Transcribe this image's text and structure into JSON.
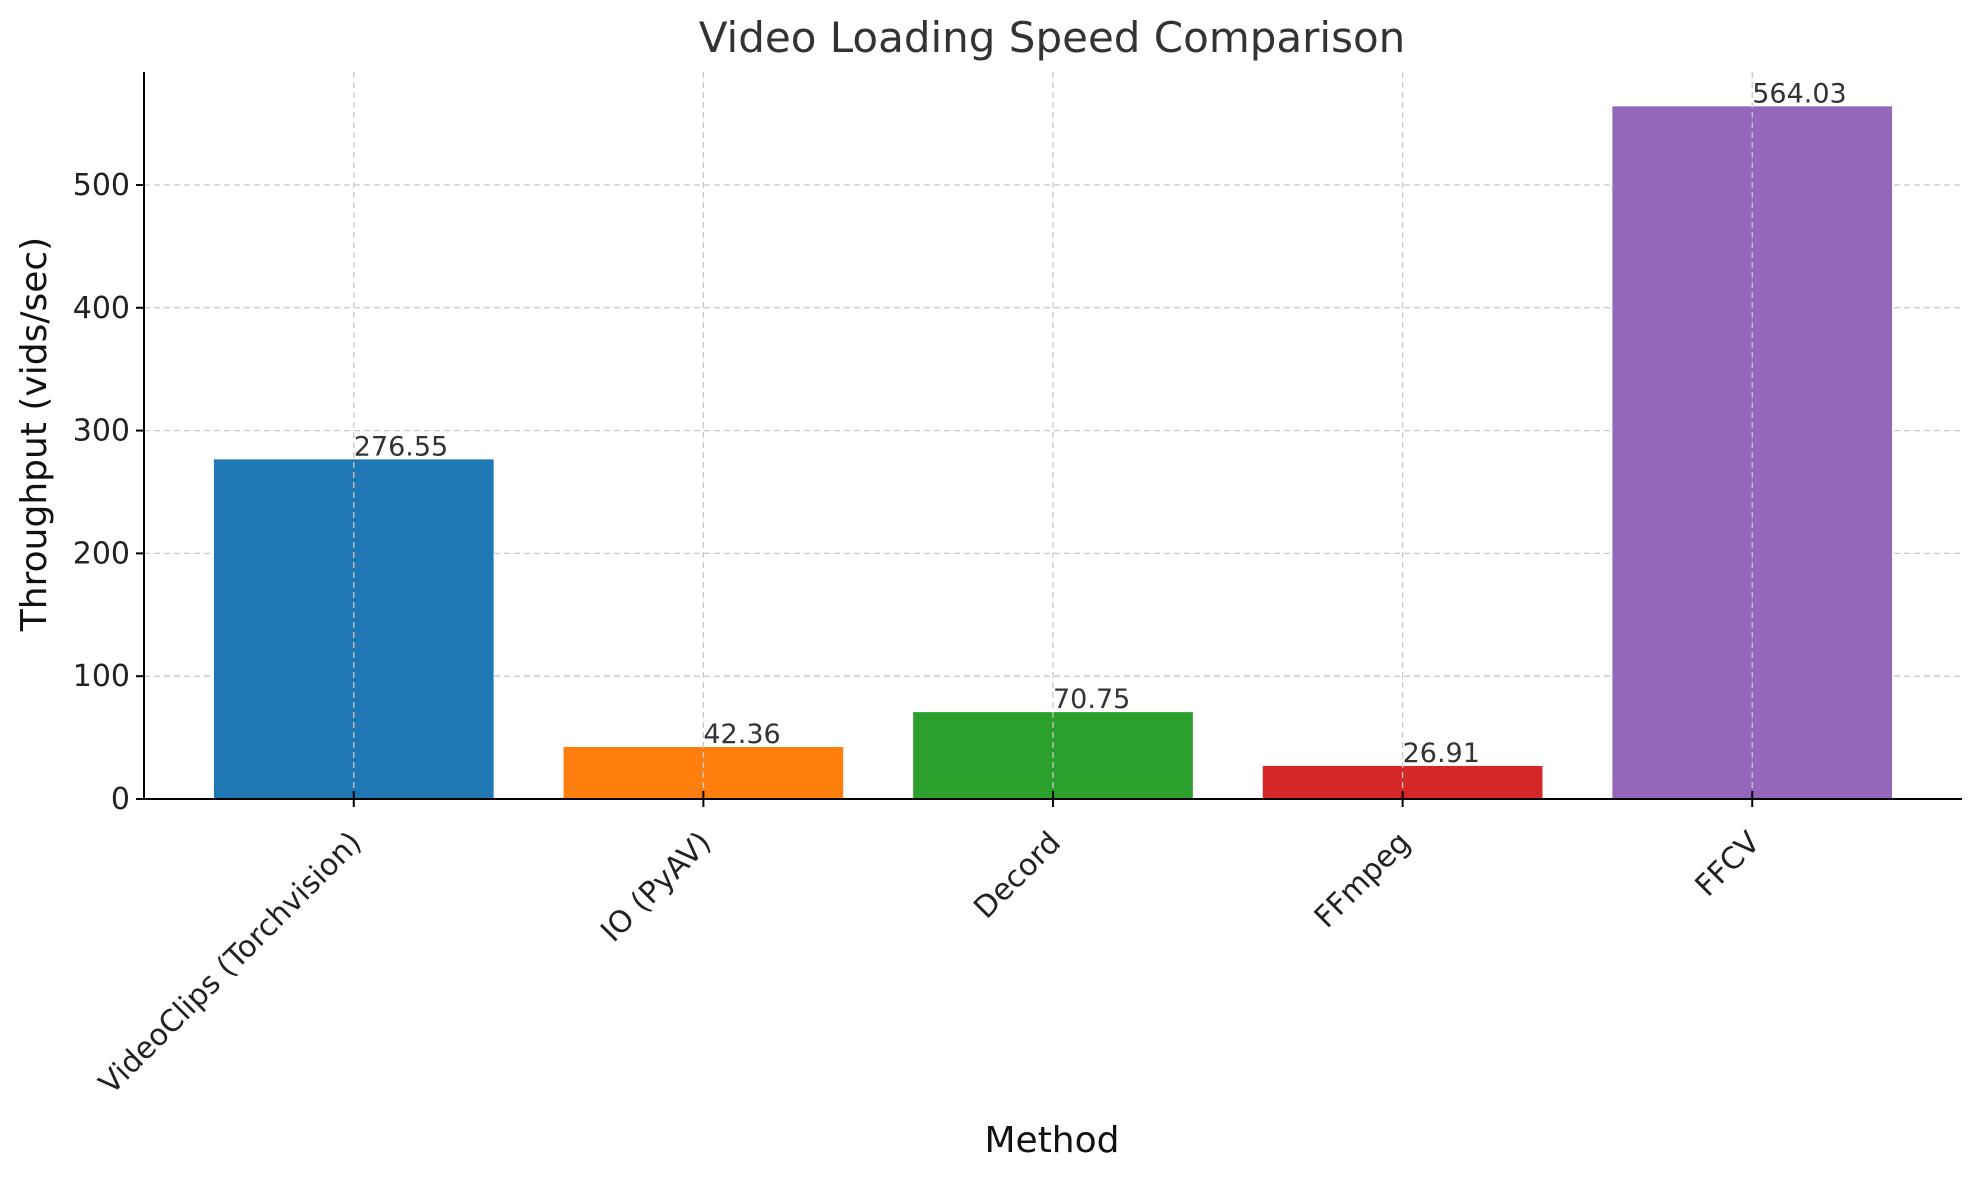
{
  "chart_data": {
    "type": "bar",
    "title": "Video Loading Speed Comparison",
    "xlabel": "Method",
    "ylabel": "Throughput (vids/sec)",
    "categories": [
      "VideoClips (Torchvision)",
      "IO (PyAV)",
      "Decord",
      "FFmpeg",
      "FFCV"
    ],
    "values": [
      276.55,
      42.36,
      70.75,
      26.91,
      564.03
    ],
    "value_labels": [
      "276.55",
      "42.36",
      "70.75",
      "26.91",
      "564.03"
    ],
    "colors": [
      "#1f77b4",
      "#ff7f0e",
      "#2ca02c",
      "#d62728",
      "#9467bd"
    ],
    "ylim": [
      0,
      592
    ],
    "yticks": [
      0,
      100,
      200,
      300,
      400,
      500
    ],
    "grid": true
  }
}
